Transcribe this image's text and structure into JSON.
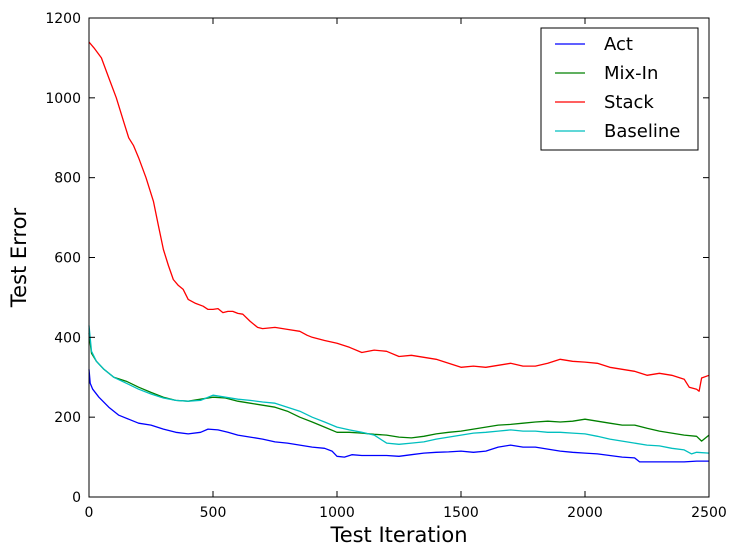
{
  "chart_data": {
    "type": "line",
    "title": "",
    "xlabel": "Test Iteration",
    "ylabel": "Test Error",
    "xlim": [
      0,
      2500
    ],
    "ylim": [
      0,
      1200
    ],
    "xticks": [
      0,
      500,
      1000,
      1500,
      2000,
      2500
    ],
    "yticks": [
      0,
      200,
      400,
      600,
      800,
      1000,
      1200
    ],
    "grid": false,
    "legend_position": "top-right",
    "series": [
      {
        "name": "Act",
        "color": "#0000ff",
        "points": [
          [
            0,
            320
          ],
          [
            5,
            285
          ],
          [
            15,
            270
          ],
          [
            40,
            250
          ],
          [
            80,
            225
          ],
          [
            120,
            205
          ],
          [
            160,
            195
          ],
          [
            200,
            185
          ],
          [
            250,
            180
          ],
          [
            300,
            170
          ],
          [
            350,
            162
          ],
          [
            400,
            158
          ],
          [
            450,
            162
          ],
          [
            480,
            170
          ],
          [
            520,
            168
          ],
          [
            560,
            162
          ],
          [
            600,
            155
          ],
          [
            650,
            150
          ],
          [
            700,
            145
          ],
          [
            750,
            138
          ],
          [
            800,
            135
          ],
          [
            850,
            130
          ],
          [
            900,
            125
          ],
          [
            950,
            122
          ],
          [
            980,
            115
          ],
          [
            1000,
            102
          ],
          [
            1030,
            100
          ],
          [
            1060,
            106
          ],
          [
            1100,
            104
          ],
          [
            1150,
            104
          ],
          [
            1200,
            104
          ],
          [
            1250,
            102
          ],
          [
            1300,
            106
          ],
          [
            1350,
            110
          ],
          [
            1400,
            112
          ],
          [
            1450,
            113
          ],
          [
            1500,
            115
          ],
          [
            1550,
            112
          ],
          [
            1600,
            115
          ],
          [
            1650,
            125
          ],
          [
            1700,
            130
          ],
          [
            1750,
            125
          ],
          [
            1800,
            125
          ],
          [
            1850,
            120
          ],
          [
            1900,
            115
          ],
          [
            1950,
            112
          ],
          [
            2000,
            110
          ],
          [
            2050,
            108
          ],
          [
            2100,
            104
          ],
          [
            2150,
            100
          ],
          [
            2200,
            98
          ],
          [
            2220,
            88
          ],
          [
            2250,
            88
          ],
          [
            2300,
            88
          ],
          [
            2350,
            88
          ],
          [
            2400,
            88
          ],
          [
            2450,
            90
          ],
          [
            2500,
            90
          ]
        ]
      },
      {
        "name": "Mix-In",
        "color": "#008000",
        "points": [
          [
            0,
            410
          ],
          [
            10,
            360
          ],
          [
            30,
            340
          ],
          [
            60,
            320
          ],
          [
            100,
            300
          ],
          [
            150,
            290
          ],
          [
            200,
            275
          ],
          [
            250,
            262
          ],
          [
            300,
            250
          ],
          [
            350,
            242
          ],
          [
            400,
            240
          ],
          [
            450,
            245
          ],
          [
            500,
            250
          ],
          [
            550,
            248
          ],
          [
            600,
            240
          ],
          [
            650,
            235
          ],
          [
            700,
            230
          ],
          [
            750,
            225
          ],
          [
            800,
            215
          ],
          [
            850,
            200
          ],
          [
            900,
            188
          ],
          [
            950,
            175
          ],
          [
            1000,
            162
          ],
          [
            1050,
            162
          ],
          [
            1100,
            160
          ],
          [
            1150,
            157
          ],
          [
            1200,
            155
          ],
          [
            1250,
            150
          ],
          [
            1300,
            148
          ],
          [
            1350,
            152
          ],
          [
            1400,
            158
          ],
          [
            1450,
            162
          ],
          [
            1500,
            165
          ],
          [
            1550,
            170
          ],
          [
            1600,
            175
          ],
          [
            1650,
            180
          ],
          [
            1700,
            182
          ],
          [
            1750,
            185
          ],
          [
            1800,
            188
          ],
          [
            1850,
            190
          ],
          [
            1900,
            188
          ],
          [
            1950,
            190
          ],
          [
            2000,
            195
          ],
          [
            2050,
            190
          ],
          [
            2100,
            185
          ],
          [
            2150,
            180
          ],
          [
            2200,
            180
          ],
          [
            2250,
            172
          ],
          [
            2300,
            165
          ],
          [
            2350,
            160
          ],
          [
            2400,
            155
          ],
          [
            2450,
            152
          ],
          [
            2470,
            140
          ],
          [
            2500,
            155
          ]
        ]
      },
      {
        "name": "Stack",
        "color": "#ff0000",
        "points": [
          [
            0,
            1140
          ],
          [
            20,
            1125
          ],
          [
            50,
            1100
          ],
          [
            80,
            1050
          ],
          [
            110,
            1000
          ],
          [
            140,
            940
          ],
          [
            160,
            900
          ],
          [
            180,
            880
          ],
          [
            200,
            850
          ],
          [
            230,
            800
          ],
          [
            260,
            740
          ],
          [
            280,
            680
          ],
          [
            300,
            620
          ],
          [
            320,
            580
          ],
          [
            340,
            545
          ],
          [
            360,
            530
          ],
          [
            380,
            520
          ],
          [
            400,
            495
          ],
          [
            430,
            485
          ],
          [
            460,
            478
          ],
          [
            480,
            470
          ],
          [
            500,
            470
          ],
          [
            520,
            472
          ],
          [
            540,
            462
          ],
          [
            560,
            465
          ],
          [
            580,
            465
          ],
          [
            600,
            460
          ],
          [
            620,
            458
          ],
          [
            650,
            440
          ],
          [
            680,
            425
          ],
          [
            700,
            422
          ],
          [
            750,
            425
          ],
          [
            800,
            420
          ],
          [
            850,
            415
          ],
          [
            880,
            405
          ],
          [
            900,
            400
          ],
          [
            950,
            392
          ],
          [
            1000,
            385
          ],
          [
            1050,
            375
          ],
          [
            1100,
            362
          ],
          [
            1150,
            368
          ],
          [
            1200,
            365
          ],
          [
            1250,
            352
          ],
          [
            1300,
            355
          ],
          [
            1350,
            350
          ],
          [
            1400,
            345
          ],
          [
            1450,
            335
          ],
          [
            1500,
            325
          ],
          [
            1550,
            328
          ],
          [
            1600,
            325
          ],
          [
            1650,
            330
          ],
          [
            1700,
            335
          ],
          [
            1750,
            328
          ],
          [
            1800,
            328
          ],
          [
            1850,
            335
          ],
          [
            1900,
            345
          ],
          [
            1950,
            340
          ],
          [
            2000,
            338
          ],
          [
            2050,
            335
          ],
          [
            2100,
            325
          ],
          [
            2150,
            320
          ],
          [
            2200,
            315
          ],
          [
            2250,
            305
          ],
          [
            2300,
            310
          ],
          [
            2350,
            305
          ],
          [
            2400,
            295
          ],
          [
            2420,
            275
          ],
          [
            2450,
            270
          ],
          [
            2460,
            265
          ],
          [
            2470,
            298
          ],
          [
            2500,
            305
          ]
        ]
      },
      {
        "name": "Baseline",
        "color": "#00bfbf",
        "points": [
          [
            0,
            430
          ],
          [
            10,
            365
          ],
          [
            30,
            340
          ],
          [
            60,
            320
          ],
          [
            100,
            300
          ],
          [
            150,
            285
          ],
          [
            200,
            270
          ],
          [
            250,
            258
          ],
          [
            300,
            248
          ],
          [
            350,
            242
          ],
          [
            400,
            240
          ],
          [
            450,
            242
          ],
          [
            500,
            255
          ],
          [
            550,
            250
          ],
          [
            600,
            245
          ],
          [
            650,
            242
          ],
          [
            700,
            238
          ],
          [
            750,
            235
          ],
          [
            800,
            225
          ],
          [
            850,
            215
          ],
          [
            900,
            200
          ],
          [
            950,
            188
          ],
          [
            1000,
            175
          ],
          [
            1050,
            168
          ],
          [
            1100,
            162
          ],
          [
            1150,
            155
          ],
          [
            1200,
            135
          ],
          [
            1250,
            132
          ],
          [
            1300,
            135
          ],
          [
            1350,
            138
          ],
          [
            1400,
            145
          ],
          [
            1450,
            150
          ],
          [
            1500,
            155
          ],
          [
            1550,
            160
          ],
          [
            1600,
            162
          ],
          [
            1650,
            165
          ],
          [
            1700,
            168
          ],
          [
            1750,
            165
          ],
          [
            1800,
            165
          ],
          [
            1850,
            162
          ],
          [
            1900,
            162
          ],
          [
            1950,
            160
          ],
          [
            2000,
            158
          ],
          [
            2050,
            152
          ],
          [
            2100,
            145
          ],
          [
            2150,
            140
          ],
          [
            2200,
            135
          ],
          [
            2250,
            130
          ],
          [
            2300,
            128
          ],
          [
            2350,
            122
          ],
          [
            2400,
            118
          ],
          [
            2430,
            108
          ],
          [
            2450,
            112
          ],
          [
            2500,
            110
          ]
        ]
      }
    ]
  }
}
